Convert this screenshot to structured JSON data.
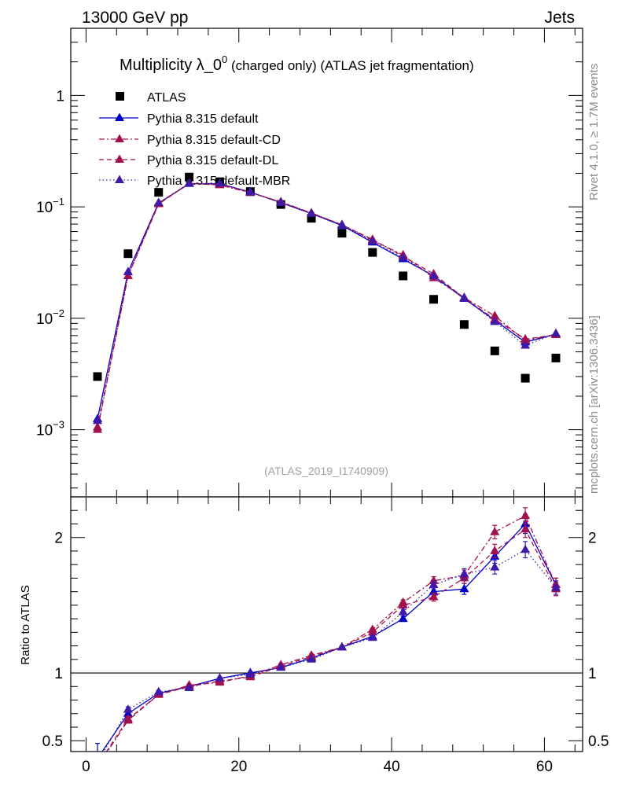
{
  "header": {
    "left": "13000 GeV pp",
    "right": "Jets"
  },
  "side_labels": {
    "rivet": "Rivet 4.1.0, ≥ 1.7M events",
    "mcplots": "mcplots.cern.ch [arXiv:1306.3436]"
  },
  "colors": {
    "atlas": "#000000",
    "default": "#0000cc",
    "cd": "#a3104e",
    "dl": "#a3104e",
    "mbr": "#3f1aa8"
  },
  "chart_data": [
    {
      "type": "scatter",
      "panel": "main",
      "title_main": "Multiplicity λ_0",
      "title_sup": "0",
      "title_rest": " (charged only) (ATLAS jet fragmentation)",
      "analysis_tag": "(ATLAS_2019_I1740909)",
      "yscale": "log",
      "xlim": [
        -2,
        65
      ],
      "ylim": [
        0.00025,
        4.0
      ],
      "y_tick_labels": [
        {
          "value": 1,
          "base": "1",
          "exp": ""
        },
        {
          "value": 0.1,
          "base": "10",
          "exp": "−1"
        },
        {
          "value": 0.01,
          "base": "10",
          "exp": "−2"
        },
        {
          "value": 0.001,
          "base": "10",
          "exp": "−3"
        }
      ],
      "x": [
        1.5,
        5.5,
        9.5,
        13.5,
        17.5,
        21.5,
        25.5,
        29.5,
        33.5,
        37.5,
        41.5,
        45.5,
        49.5,
        53.5,
        57.5,
        61.5
      ],
      "series": [
        {
          "name": "ATLAS",
          "key": "atlas",
          "style": "data",
          "values": [
            0.003,
            0.038,
            0.135,
            0.185,
            0.168,
            0.137,
            0.105,
            0.079,
            0.058,
            0.039,
            0.024,
            0.0148,
            0.0088,
            0.0051,
            0.0029,
            0.0044
          ]
        },
        {
          "name": "Pythia 8.315 default",
          "key": "default",
          "style": "solid",
          "values": [
            0.00125,
            0.026,
            0.108,
            0.161,
            0.161,
            0.136,
            0.109,
            0.087,
            0.068,
            0.048,
            0.034,
            0.024,
            0.015,
            0.0096,
            0.0061,
            0.0072
          ]
        },
        {
          "name": "Pythia 8.315 default-CD",
          "key": "cd",
          "style": "dashdot",
          "values": [
            0.001,
            0.024,
            0.107,
            0.163,
            0.157,
            0.134,
            0.111,
            0.088,
            0.069,
            0.05,
            0.037,
            0.023,
            0.0153,
            0.0105,
            0.0063,
            0.0072
          ]
        },
        {
          "name": "Pythia 8.315 default-DL",
          "key": "dl",
          "style": "dashed",
          "values": [
            0.00105,
            0.024,
            0.106,
            0.162,
            0.159,
            0.135,
            0.11,
            0.088,
            0.069,
            0.051,
            0.036,
            0.025,
            0.0152,
            0.0098,
            0.0065,
            0.0071
          ]
        },
        {
          "name": "Pythia 8.315 default-MBR",
          "key": "mbr",
          "style": "dotted",
          "values": [
            0.0012,
            0.026,
            0.109,
            0.162,
            0.162,
            0.135,
            0.109,
            0.087,
            0.069,
            0.049,
            0.035,
            0.024,
            0.0153,
            0.0093,
            0.0057,
            0.0073
          ]
        }
      ]
    },
    {
      "type": "line",
      "panel": "ratio",
      "ylabel": "Ratio to ATLAS",
      "xlim": [
        -2,
        65
      ],
      "ylim": [
        0.42,
        2.3
      ],
      "x_ticks": [
        0,
        20,
        40,
        60
      ],
      "y_ticks": [
        0.5,
        1,
        2
      ],
      "reference_line": 1,
      "x": [
        1.5,
        5.5,
        9.5,
        13.5,
        17.5,
        21.5,
        25.5,
        29.5,
        33.5,
        37.5,
        41.5,
        45.5,
        49.5,
        53.5,
        57.5,
        61.5
      ],
      "series": [
        {
          "name": "Pythia 8.315 default",
          "key": "default",
          "style": "solid",
          "values": [
            0.37,
            0.7,
            0.85,
            0.9,
            0.96,
            1.0,
            1.04,
            1.11,
            1.19,
            1.27,
            1.4,
            1.6,
            1.62,
            1.86,
            2.1,
            1.65
          ],
          "errors": [
            0.11,
            0.02,
            0.02,
            0.01,
            0.01,
            0.01,
            0.01,
            0.01,
            0.01,
            0.01,
            0.02,
            0.03,
            0.04,
            0.05,
            0.07,
            0.05
          ]
        },
        {
          "name": "Pythia 8.315 default-CD",
          "key": "cd",
          "style": "dashdot",
          "values": [
            0.31,
            0.65,
            0.84,
            0.91,
            0.93,
            0.98,
            1.06,
            1.13,
            1.19,
            1.32,
            1.52,
            1.68,
            1.72,
            2.04,
            2.16,
            1.65
          ],
          "errors": [
            0.02,
            0.02,
            0.01,
            0.01,
            0.01,
            0.01,
            0.01,
            0.01,
            0.01,
            0.01,
            0.02,
            0.03,
            0.04,
            0.05,
            0.06,
            0.05
          ]
        },
        {
          "name": "Pythia 8.315 default-DL",
          "key": "dl",
          "style": "dashed",
          "values": [
            0.32,
            0.66,
            0.84,
            0.9,
            0.94,
            0.97,
            1.05,
            1.12,
            1.19,
            1.3,
            1.5,
            1.56,
            1.7,
            1.9,
            2.06,
            1.62
          ],
          "errors": [
            0.02,
            0.02,
            0.01,
            0.01,
            0.01,
            0.01,
            0.01,
            0.01,
            0.01,
            0.01,
            0.02,
            0.03,
            0.04,
            0.05,
            0.06,
            0.05
          ]
        },
        {
          "name": "Pythia 8.315 default-MBR",
          "key": "mbr",
          "style": "dotted",
          "values": [
            0.34,
            0.73,
            0.86,
            0.89,
            0.96,
            0.99,
            1.04,
            1.1,
            1.19,
            1.26,
            1.45,
            1.65,
            1.73,
            1.78,
            1.91,
            1.63
          ],
          "errors": [
            0.02,
            0.02,
            0.01,
            0.01,
            0.01,
            0.01,
            0.01,
            0.01,
            0.01,
            0.01,
            0.02,
            0.03,
            0.04,
            0.05,
            0.06,
            0.05
          ]
        }
      ]
    }
  ]
}
